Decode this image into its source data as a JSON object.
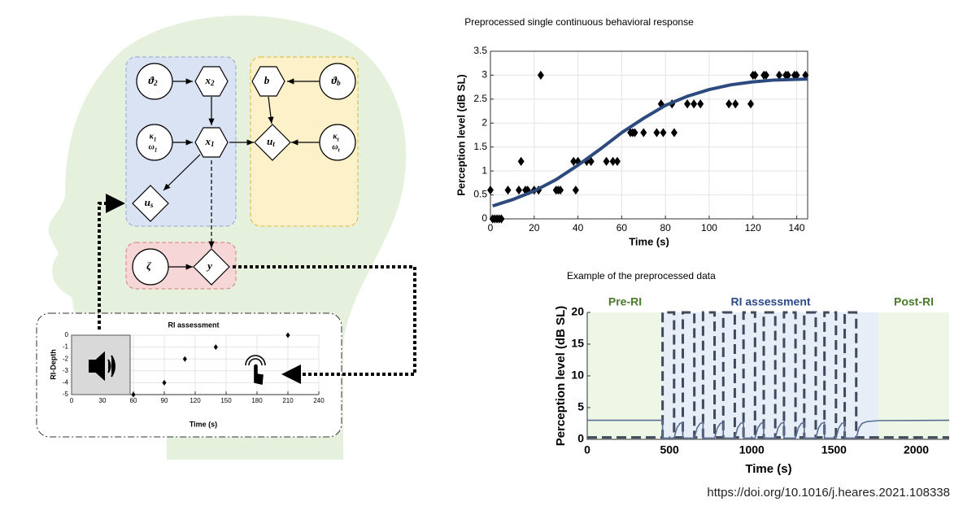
{
  "diagram": {
    "nodes": [
      {
        "lines": [
          [
            "ϑ",
            "2"
          ]
        ]
      },
      {
        "lines": [
          [
            "x",
            "2"
          ]
        ]
      },
      {
        "lines": [
          [
            "b"
          ]
        ]
      },
      {
        "lines": [
          [
            "ϑ",
            "b"
          ]
        ]
      },
      {
        "lines": [
          [
            "κ",
            "1"
          ],
          [
            "ω",
            "1"
          ]
        ]
      },
      {
        "lines": [
          [
            "x",
            "1"
          ]
        ]
      },
      {
        "lines": [
          [
            "u",
            "t"
          ]
        ]
      },
      {
        "lines": [
          [
            "κ",
            "t"
          ],
          [
            "ω",
            "t"
          ]
        ]
      },
      {
        "lines": [
          [
            "u",
            "s"
          ]
        ]
      },
      {
        "lines": [
          [
            "ζ"
          ]
        ]
      },
      {
        "lines": [
          [
            "y"
          ]
        ]
      }
    ]
  },
  "chart_data": [
    {
      "type": "scatter",
      "title": "Preprocessed single continuous behavioral response",
      "xlabel": "Time (s)",
      "ylabel": "Perception level (dB SL)",
      "xlim": [
        0,
        145
      ],
      "ylim": [
        0,
        3.5
      ],
      "xticks": [
        0,
        20,
        40,
        60,
        80,
        100,
        120,
        140
      ],
      "yticks": [
        0,
        0.5,
        1,
        1.5,
        2,
        2.5,
        3,
        3.5
      ],
      "grid": true,
      "series": [
        {
          "type": "scatter",
          "color": "#000000",
          "x": [
            0,
            1,
            2,
            3,
            4,
            5,
            8,
            13,
            14,
            16,
            17,
            20,
            22,
            23,
            30,
            31,
            32,
            38,
            39,
            40,
            44,
            46,
            53,
            56,
            58,
            64,
            65,
            66,
            70,
            76,
            78,
            79,
            83,
            84,
            90,
            93,
            96,
            109,
            112,
            119,
            120,
            121,
            125,
            126,
            132,
            135,
            136,
            139,
            140,
            144
          ],
          "values": [
            0.6,
            0,
            0,
            0,
            0,
            0,
            0.6,
            0.6,
            1.2,
            0.6,
            0.6,
            0.6,
            0.6,
            3,
            0.6,
            0.6,
            0.6,
            1.2,
            0.6,
            1.2,
            1.2,
            1.2,
            1.2,
            1.2,
            1.2,
            1.8,
            1.8,
            1.8,
            1.8,
            1.8,
            2.4,
            1.8,
            2.4,
            1.8,
            2.4,
            2.4,
            2.4,
            2.4,
            2.4,
            2.4,
            3,
            3,
            3,
            3,
            3,
            3,
            3,
            3,
            3,
            3
          ]
        },
        {
          "type": "line",
          "color": "#2d4a7f",
          "x": [
            1,
            10,
            20,
            30,
            40,
            50,
            60,
            70,
            80,
            90,
            100,
            110,
            120,
            130,
            145
          ],
          "values": [
            0.27,
            0.4,
            0.58,
            0.82,
            1.12,
            1.45,
            1.8,
            2.1,
            2.37,
            2.56,
            2.7,
            2.8,
            2.86,
            2.9,
            2.92
          ]
        }
      ]
    },
    {
      "type": "line",
      "title": "Example of the preprocessed data",
      "xlabel": "Time (s)",
      "ylabel": "Perception level (dB SL)",
      "xlim": [
        0,
        2200
      ],
      "ylim": [
        0,
        20
      ],
      "xticks": [
        0,
        500,
        1000,
        1500,
        2000
      ],
      "yticks": [
        0,
        5,
        10,
        15,
        20
      ],
      "regions": [
        {
          "label": "Pre-RI",
          "start": 0,
          "end": 460,
          "color": "#eef6e6",
          "label_color": "#4a7a2a"
        },
        {
          "label": "RI assessment",
          "start": 460,
          "end": 1770,
          "color": "#e8eef8",
          "label_color": "#2d4a8a"
        },
        {
          "label": "Post-RI",
          "start": 1770,
          "end": 2200,
          "color": "#eef6e6",
          "label_color": "#4a7a2a"
        }
      ],
      "series": [
        {
          "type": "line",
          "color": "#3f4a5c",
          "dash": true,
          "x": [
            0,
            458,
            458,
            528,
            528,
            581,
            581,
            651,
            651,
            704,
            704,
            774,
            774,
            827,
            827,
            897,
            897,
            950,
            950,
            1020,
            1020,
            1073,
            1073,
            1143,
            1143,
            1196,
            1196,
            1266,
            1266,
            1319,
            1319,
            1389,
            1389,
            1442,
            1442,
            1512,
            1512,
            1565,
            1565,
            1635,
            1635,
            2200
          ],
          "values": [
            0.3,
            0.3,
            20,
            20,
            0.3,
            0.3,
            20,
            20,
            0.3,
            0.3,
            20,
            20,
            0.3,
            0.3,
            20,
            20,
            0.3,
            0.3,
            20,
            20,
            0.3,
            0.3,
            20,
            20,
            0.3,
            0.3,
            20,
            20,
            0.3,
            0.3,
            20,
            20,
            0.3,
            0.3,
            20,
            20,
            0.3,
            0.3,
            20,
            20,
            0.3,
            0.3
          ]
        },
        {
          "type": "line",
          "color": "#5a6e93",
          "dash": false,
          "x": [
            0,
            458,
            458,
            528,
            545,
            563,
            581,
            581,
            651,
            668,
            686,
            704,
            704,
            774,
            791,
            809,
            827,
            827,
            897,
            914,
            932,
            950,
            950,
            1020,
            1037,
            1055,
            1073,
            1073,
            1143,
            1160,
            1178,
            1196,
            1196,
            1266,
            1283,
            1301,
            1319,
            1319,
            1389,
            1406,
            1424,
            1442,
            1442,
            1512,
            1529,
            1547,
            1565,
            1565,
            1635,
            1652,
            1670,
            1700,
            1770,
            2200
          ],
          "values": [
            3,
            3,
            0.2,
            0.2,
            1.8,
            2.5,
            2.7,
            0.2,
            0.2,
            1.8,
            2.5,
            2.7,
            0.2,
            0.2,
            1.8,
            2.5,
            2.7,
            0.2,
            0.2,
            1.8,
            2.5,
            2.7,
            0.2,
            0.2,
            1.8,
            2.5,
            2.7,
            0.2,
            0.2,
            1.8,
            2.5,
            2.7,
            0.2,
            0.2,
            1.8,
            2.5,
            2.7,
            0.2,
            0.2,
            1.8,
            2.5,
            2.7,
            0.2,
            0.2,
            1.8,
            2.5,
            2.7,
            0.2,
            0.2,
            1.8,
            2.5,
            2.8,
            2.95,
            3
          ]
        }
      ]
    },
    {
      "type": "scatter",
      "title": "RI assessment",
      "xlabel": "Time (s)",
      "ylabel": "RI-Depth",
      "xlim": [
        0,
        240
      ],
      "ylim": [
        -5,
        0
      ],
      "xticks": [
        0,
        30,
        60,
        90,
        120,
        150,
        180,
        210,
        240
      ],
      "yticks": [
        0,
        -1,
        -2,
        -3,
        -4,
        -5
      ],
      "grid": true,
      "series": [
        {
          "type": "scatter",
          "color": "#000000",
          "x": [
            60,
            90,
            110,
            140,
            210
          ],
          "values": [
            -5,
            -4,
            -2,
            -1,
            0
          ]
        }
      ]
    }
  ],
  "source": "https://doi.org/10.1016/j.heares.2021.108338"
}
